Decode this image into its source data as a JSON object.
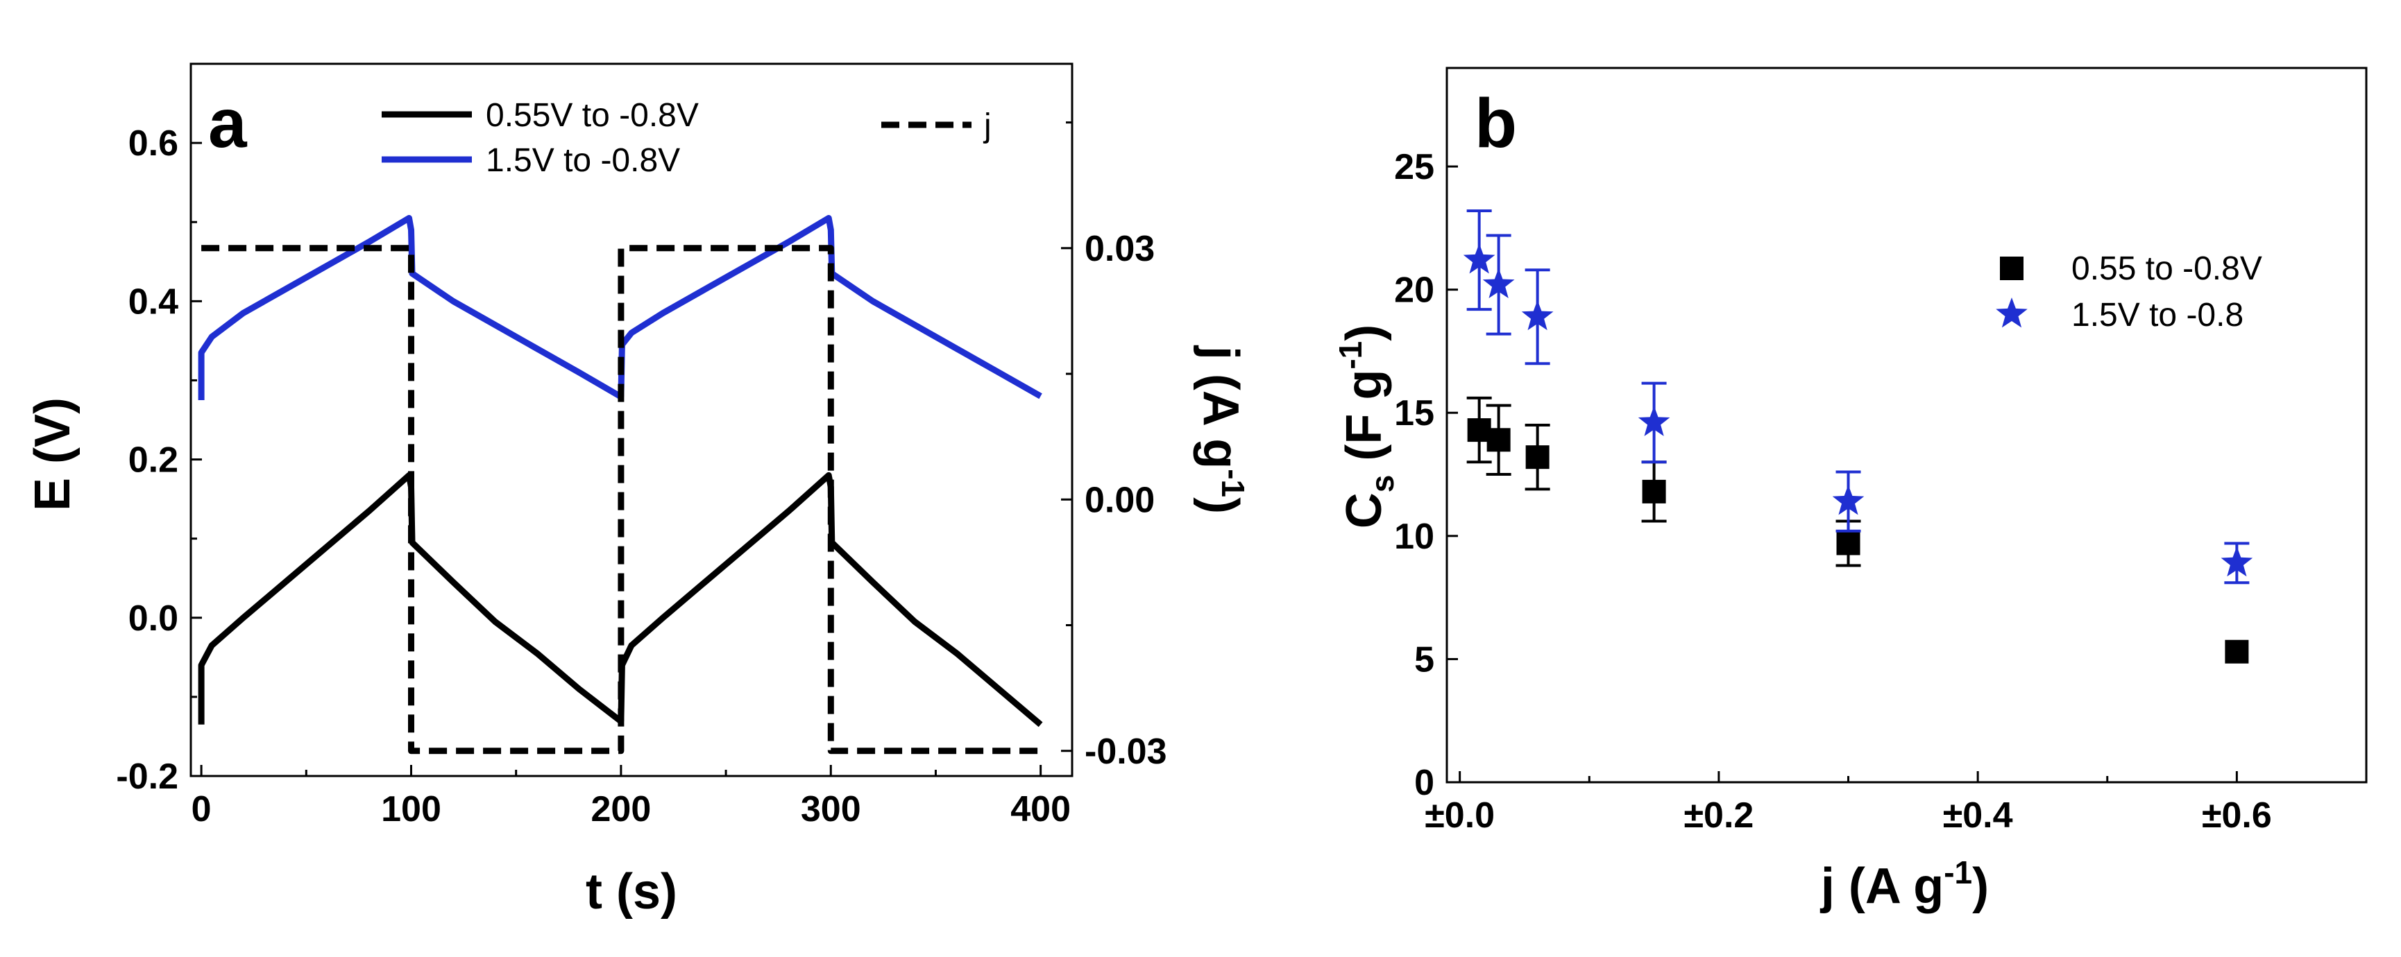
{
  "chart_data": [
    {
      "panel": "a",
      "type": "line",
      "xlabel": "t (s)",
      "ylabel": "E (V)",
      "y2label": "j (A g",
      "y2label_sup": "-1",
      "y2label_close": ")",
      "xlim": [
        -5,
        415
      ],
      "ylim": [
        -0.2,
        0.7
      ],
      "y2lim": [
        -0.033,
        0.052
      ],
      "xticks": [
        0,
        100,
        200,
        300,
        400
      ],
      "xtick_labels": [
        "0",
        "100",
        "200",
        "300",
        "400"
      ],
      "yticks": [
        -0.2,
        0.0,
        0.2,
        0.4,
        0.6
      ],
      "ytick_labels": [
        "-0.2",
        "0.0",
        "0.2",
        "0.4",
        "0.6"
      ],
      "y2ticks": [
        -0.03,
        0.0,
        0.03
      ],
      "y2tick_labels": [
        "-0.03",
        "0.00",
        "0.03"
      ],
      "series": [
        {
          "name": "0.55V to -0.8V",
          "color": "#000000",
          "axis": "left",
          "x": [
            0,
            0,
            5,
            20,
            40,
            60,
            80,
            99,
            100,
            100.5,
            120,
            140,
            160,
            180,
            199.5,
            200,
            200.5,
            205,
            220,
            240,
            260,
            280,
            299,
            300,
            300.5,
            320,
            340,
            360,
            380,
            400
          ],
          "y": [
            -0.135,
            -0.06,
            -0.035,
            0.0,
            0.045,
            0.09,
            0.135,
            0.18,
            0.165,
            0.095,
            0.045,
            -0.005,
            -0.045,
            -0.09,
            -0.13,
            -0.13,
            -0.06,
            -0.035,
            0.0,
            0.045,
            0.09,
            0.135,
            0.18,
            0.165,
            0.095,
            0.045,
            -0.005,
            -0.045,
            -0.09,
            -0.135
          ]
        },
        {
          "name": "1.5V to -0.8V",
          "color": "#1f2fd1",
          "axis": "left",
          "x": [
            0,
            0,
            5,
            20,
            40,
            60,
            80,
            99,
            100,
            100.5,
            120,
            140,
            160,
            180,
            199.5,
            200,
            200.5,
            205,
            220,
            240,
            260,
            280,
            299,
            300,
            300.5,
            320,
            340,
            360,
            380,
            400
          ],
          "y": [
            0.275,
            0.335,
            0.355,
            0.385,
            0.415,
            0.445,
            0.475,
            0.505,
            0.49,
            0.435,
            0.4,
            0.37,
            0.34,
            0.31,
            0.28,
            0.28,
            0.345,
            0.36,
            0.385,
            0.415,
            0.445,
            0.475,
            0.505,
            0.49,
            0.435,
            0.4,
            0.37,
            0.34,
            0.31,
            0.28
          ]
        },
        {
          "name": "j",
          "color": "#000000",
          "dashed": true,
          "axis": "right",
          "x": [
            0,
            98,
            100,
            100,
            198,
            200,
            200,
            298,
            300,
            300,
            400
          ],
          "y": [
            0.03,
            0.03,
            0.03,
            -0.03,
            -0.03,
            -0.03,
            0.03,
            0.03,
            0.03,
            -0.03,
            -0.03
          ]
        }
      ]
    },
    {
      "panel": "b",
      "type": "scatter",
      "xlabel": "j (A g",
      "xlabel_sup": "-1",
      "xlabel_close": ")",
      "ylabel": "C",
      "ylabel_sub": "s",
      "ylabel_rest": " (F g",
      "ylabel_sup": "-1",
      "ylabel_close": ")",
      "xlim": [
        -0.01,
        0.7
      ],
      "ylim": [
        0,
        29
      ],
      "xticks": [
        0.0,
        0.2,
        0.4,
        0.6
      ],
      "xtick_labels": [
        "±0.0",
        "±0.2",
        "±0.4",
        "±0.6"
      ],
      "yticks": [
        0,
        5,
        10,
        15,
        20,
        25
      ],
      "ytick_labels": [
        "0",
        "5",
        "10",
        "15",
        "20",
        "25"
      ],
      "series": [
        {
          "name": "0.55 to -0.8V",
          "marker": "square",
          "color": "#000000",
          "x": [
            0.015,
            0.03,
            0.06,
            0.15,
            0.3,
            0.6
          ],
          "y": [
            14.3,
            13.9,
            13.2,
            11.8,
            9.7,
            5.3
          ],
          "err": [
            1.3,
            1.4,
            1.3,
            1.2,
            0.9,
            0.0
          ]
        },
        {
          "name": "1.5V to -0.8",
          "marker": "star",
          "color": "#1f2fd1",
          "x": [
            0.015,
            0.03,
            0.06,
            0.15,
            0.3,
            0.6
          ],
          "y": [
            21.2,
            20.2,
            18.9,
            14.6,
            11.4,
            8.9
          ],
          "err": [
            2.0,
            2.0,
            1.9,
            1.6,
            1.2,
            0.8
          ]
        }
      ]
    }
  ]
}
